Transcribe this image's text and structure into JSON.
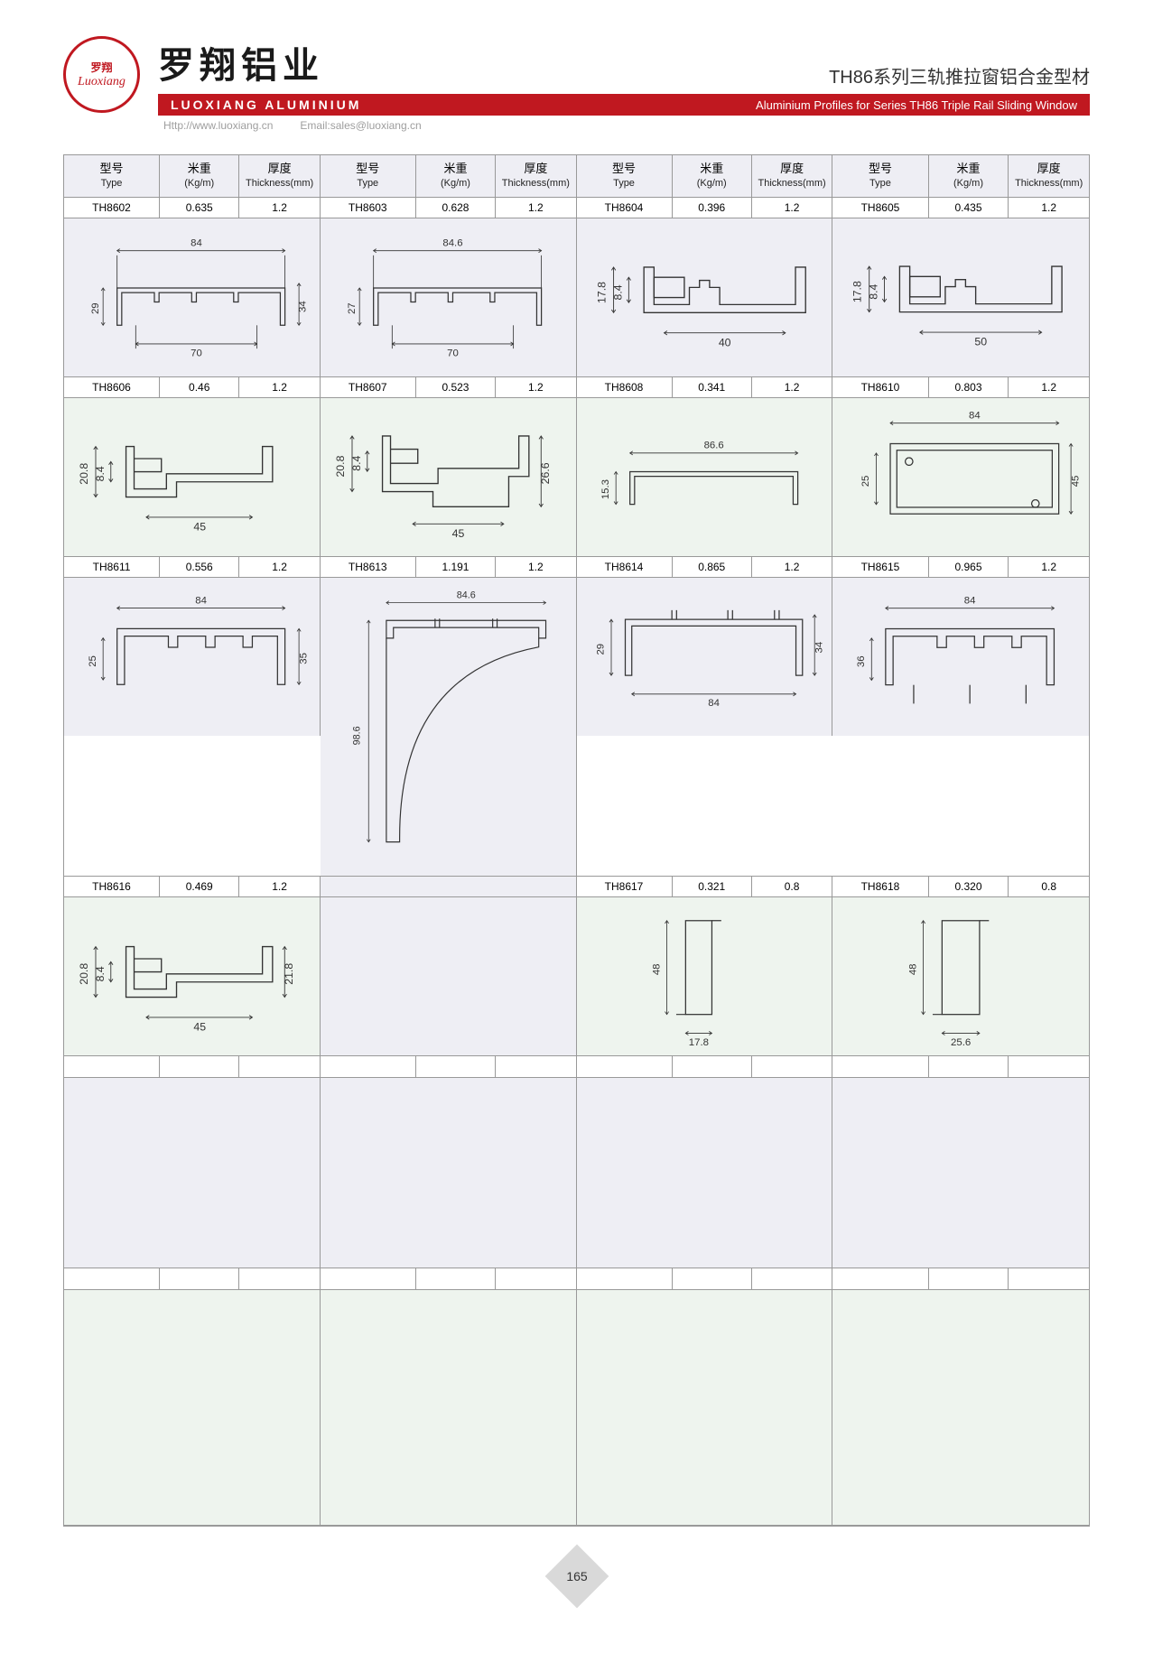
{
  "header": {
    "logo_cn": "罗翔",
    "logo_en": "Luoxiang",
    "brand_cn": "罗翔铝业",
    "brand_en": "LUOXIANG ALUMINIUM",
    "title_cn": "TH86系列三轨推拉窗铝合金型材",
    "title_en": "Aluminium Profiles for Series TH86 Triple Rail Sliding Window",
    "url": "Http://www.luoxiang.cn",
    "email": "Email:sales@luoxiang.cn"
  },
  "columns": {
    "type_cn": "型号",
    "type_en": "Type",
    "weight_cn": "米重",
    "weight_en": "(Kg/m)",
    "thick_cn": "厚度",
    "thick_en": "Thickness(mm)"
  },
  "colors": {
    "red": "#c01820",
    "bg_a": "#eeeef4",
    "bg_b": "#eef4ee",
    "border": "#999999",
    "text": "#333333"
  },
  "rows": [
    {
      "bg": "a",
      "cells": [
        {
          "type": "TH8602",
          "weight": "0.635",
          "thick": "1.2",
          "dims": {
            "w": "84",
            "w2": "70",
            "h1": "29",
            "h2": "34"
          }
        },
        {
          "type": "TH8603",
          "weight": "0.628",
          "thick": "1.2",
          "dims": {
            "w": "84.6",
            "w2": "70",
            "h1": "27"
          }
        },
        {
          "type": "TH8604",
          "weight": "0.396",
          "thick": "1.2",
          "dims": {
            "w": "40",
            "h1": "17.8",
            "h2": "8.4"
          }
        },
        {
          "type": "TH8605",
          "weight": "0.435",
          "thick": "1.2",
          "dims": {
            "w": "50",
            "h1": "17.8",
            "h2": "8.4"
          }
        }
      ]
    },
    {
      "bg": "b",
      "cells": [
        {
          "type": "TH8606",
          "weight": "0.46",
          "thick": "1.2",
          "dims": {
            "w": "45",
            "h1": "20.8",
            "h2": "8.4"
          }
        },
        {
          "type": "TH8607",
          "weight": "0.523",
          "thick": "1.2",
          "dims": {
            "w": "45",
            "h1": "20.8",
            "h2": "8.4",
            "h3": "26.6"
          }
        },
        {
          "type": "TH8608",
          "weight": "0.341",
          "thick": "1.2",
          "dims": {
            "w": "86.6",
            "h1": "15.3"
          }
        },
        {
          "type": "TH8610",
          "weight": "0.803",
          "thick": "1.2",
          "dims": {
            "w": "84",
            "h1": "25",
            "h2": "45"
          }
        }
      ]
    },
    {
      "bg": "a",
      "cells": [
        {
          "type": "TH8611",
          "weight": "0.556",
          "thick": "1.2",
          "dims": {
            "w": "84",
            "h1": "25",
            "h2": "35"
          }
        },
        {
          "type": "TH8613",
          "weight": "1.191",
          "thick": "1.2",
          "dims": {
            "w": "84.6",
            "h1": "98.6"
          },
          "rowspan": 2
        },
        {
          "type": "TH8614",
          "weight": "0.865",
          "thick": "1.2",
          "dims": {
            "w": "84",
            "h1": "29",
            "h2": "34"
          }
        },
        {
          "type": "TH8615",
          "weight": "0.965",
          "thick": "1.2",
          "dims": {
            "w": "84",
            "h1": "36"
          }
        }
      ]
    },
    {
      "bg": "b",
      "cells": [
        {
          "type": "TH8616",
          "weight": "0.469",
          "thick": "1.2",
          "dims": {
            "w": "45",
            "h1": "20.8",
            "h2": "8.4",
            "h3": "21.8"
          }
        },
        null,
        {
          "type": "TH8617",
          "weight": "0.321",
          "thick": "0.8",
          "dims": {
            "w": "17.8",
            "h1": "48"
          }
        },
        {
          "type": "TH8618",
          "weight": "0.320",
          "thick": "0.8",
          "dims": {
            "w": "25.6",
            "h1": "48"
          }
        }
      ]
    }
  ],
  "page_number": "165"
}
